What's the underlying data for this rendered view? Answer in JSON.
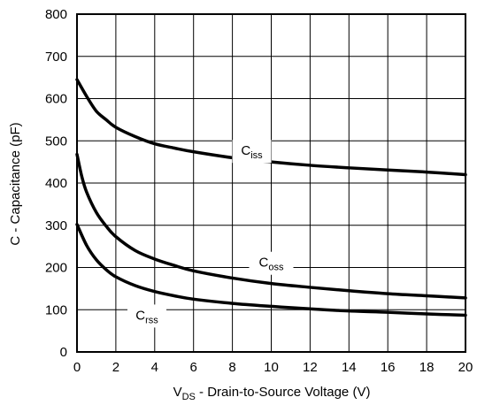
{
  "chart_data": {
    "type": "line",
    "xlabel": {
      "main": "V",
      "sub": "DS",
      "rest": " - Drain-to-Source Voltage (V)"
    },
    "ylabel": "C - Capacitance (pF)",
    "xlim": [
      0,
      20
    ],
    "ylim": [
      0,
      800
    ],
    "x_ticks": [
      0,
      2,
      4,
      6,
      8,
      10,
      12,
      14,
      16,
      18,
      20
    ],
    "y_ticks": [
      0,
      100,
      200,
      300,
      400,
      500,
      600,
      700,
      800
    ],
    "grid": true,
    "series": [
      {
        "name": {
          "main": "C",
          "sub": "iss"
        },
        "x": [
          0,
          0.5,
          1,
          1.5,
          2,
          3,
          4,
          5,
          6,
          8,
          10,
          12,
          14,
          16,
          18,
          20
        ],
        "values": [
          645,
          605,
          570,
          550,
          532,
          510,
          493,
          483,
          474,
          460,
          450,
          442,
          436,
          431,
          426,
          420
        ]
      },
      {
        "name": {
          "main": "C",
          "sub": "oss"
        },
        "x": [
          0,
          0.25,
          0.5,
          1,
          1.5,
          2,
          3,
          4,
          5,
          6,
          8,
          10,
          12,
          14,
          16,
          18,
          20
        ],
        "values": [
          468,
          415,
          378,
          330,
          298,
          273,
          240,
          220,
          205,
          192,
          175,
          162,
          153,
          145,
          138,
          133,
          128
        ]
      },
      {
        "name": {
          "main": "C",
          "sub": "rss"
        },
        "x": [
          0,
          0.5,
          1,
          1.5,
          2,
          3,
          4,
          5,
          6,
          8,
          10,
          12,
          14,
          16,
          18,
          20
        ],
        "values": [
          302,
          252,
          218,
          195,
          178,
          157,
          143,
          133,
          125,
          115,
          108,
          102,
          97,
          94,
          90,
          87
        ]
      }
    ]
  }
}
